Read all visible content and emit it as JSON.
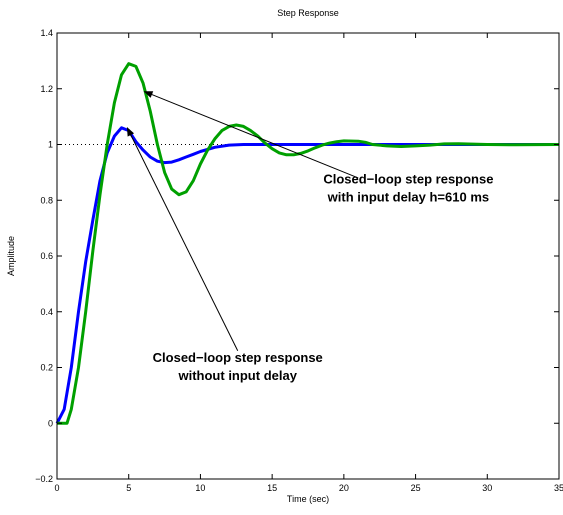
{
  "chart_data": {
    "type": "line",
    "title": "Step Response",
    "xlabel": "Time (sec)",
    "ylabel": "Amplitude",
    "xlim": [
      0,
      35
    ],
    "ylim": [
      -0.2,
      1.4
    ],
    "xticks": [
      0,
      5,
      10,
      15,
      20,
      25,
      30,
      35
    ],
    "yticks": [
      -0.2,
      0,
      0.2,
      0.4,
      0.6,
      0.8,
      1,
      1.2,
      1.4
    ],
    "grid": false,
    "reference_line": {
      "y": 1,
      "style": "dotted",
      "color": "#000000"
    },
    "series": [
      {
        "color": "#0000ff",
        "x": [
          0,
          0.5,
          1,
          1.5,
          2,
          2.5,
          3,
          3.5,
          4,
          4.5,
          5,
          5.5,
          6,
          6.5,
          7,
          7.5,
          8,
          8.5,
          9,
          9.5,
          10,
          11,
          12,
          13,
          14,
          15,
          16,
          18,
          20,
          25,
          30,
          35
        ],
        "values": [
          0,
          0.05,
          0.2,
          0.4,
          0.58,
          0.73,
          0.87,
          0.97,
          1.03,
          1.06,
          1.05,
          1.01,
          0.98,
          0.955,
          0.94,
          0.935,
          0.937,
          0.945,
          0.955,
          0.965,
          0.975,
          0.99,
          0.998,
          1.0,
          1.0,
          1.0,
          1.0,
          1.0,
          1.0,
          1.0,
          1.0,
          1.0
        ]
      },
      {
        "color": "#00a000",
        "x": [
          0,
          0.7,
          1,
          1.5,
          2,
          2.5,
          3,
          3.5,
          4,
          4.5,
          5,
          5.5,
          6,
          6.5,
          7,
          7.5,
          8,
          8.5,
          9,
          9.5,
          10,
          10.5,
          11,
          11.5,
          12,
          12.5,
          13,
          13.5,
          14,
          14.5,
          15,
          15.5,
          16,
          16.5,
          17,
          17.5,
          18,
          18.5,
          19,
          19.5,
          20,
          21,
          21.5,
          22,
          23,
          24,
          25,
          26,
          27,
          28,
          30,
          32,
          35
        ],
        "values": [
          0,
          0,
          0.05,
          0.2,
          0.4,
          0.62,
          0.82,
          1.0,
          1.15,
          1.25,
          1.29,
          1.28,
          1.22,
          1.12,
          1.0,
          0.9,
          0.84,
          0.82,
          0.83,
          0.87,
          0.93,
          0.98,
          1.02,
          1.05,
          1.065,
          1.07,
          1.065,
          1.05,
          1.03,
          1.005,
          0.985,
          0.97,
          0.963,
          0.963,
          0.968,
          0.977,
          0.988,
          0.998,
          1.005,
          1.01,
          1.013,
          1.012,
          1.008,
          1.0,
          0.995,
          0.993,
          0.995,
          0.998,
          1.002,
          1.003,
          1.0,
          0.999,
          1.0
        ]
      }
    ],
    "annotations": [
      {
        "lines": [
          "Closed−loop step response",
          "with input delay h=610 ms"
        ],
        "text_at": [
          24.5,
          0.86
        ],
        "arrow_from": [
          21,
          0.88
        ],
        "arrow_to": [
          6.1,
          1.19
        ]
      },
      {
        "lines": [
          "Closed−loop step response",
          "without input delay"
        ],
        "text_at": [
          12.6,
          0.22
        ],
        "arrow_from": [
          12.6,
          0.26
        ],
        "arrow_to": [
          4.9,
          1.06
        ]
      }
    ]
  }
}
